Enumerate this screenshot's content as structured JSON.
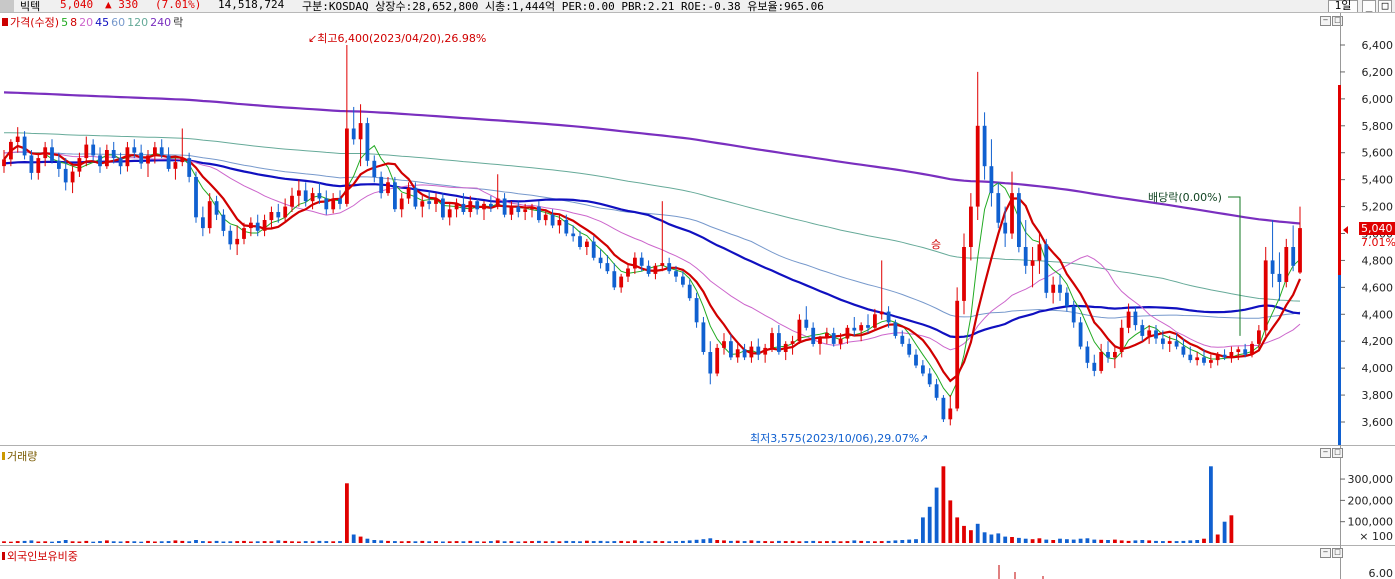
{
  "header": {
    "name": "빅텍",
    "price": "5,040",
    "change": "▲ 330",
    "change_pct": "(7.01%)",
    "volume": "14,518,724",
    "info": "구분:KOSDAQ  상장수:28,652,800  시총:1,444억  PER:0.00  PBR:2.21  ROE:-0.38  유보율:965.06",
    "period_button": "1일"
  },
  "price_panel": {
    "legend": [
      {
        "label": "가격(수정)",
        "color": "#d00000"
      },
      {
        "label": "5",
        "color": "#22aa22"
      },
      {
        "label": "8",
        "color": "#d00000"
      },
      {
        "label": "20",
        "color": "#cc66cc"
      },
      {
        "label": "45",
        "color": "#1010c0"
      },
      {
        "label": "60",
        "color": "#7799cc"
      },
      {
        "label": "120",
        "color": "#66aa99"
      },
      {
        "label": "240",
        "color": "#7a2fbf"
      },
      {
        "label": "락",
        "color": "#333333"
      }
    ],
    "high_label": "최고6,400(2023/04/20),26.98%",
    "low_label": "최저3,575(2023/10/06),29.07%",
    "dividend_label": "배당락(0.00%)",
    "rights_marker": "승",
    "current_price": "5,040",
    "current_pct": "7.01%",
    "y_ticks": [
      "6,400",
      "6,200",
      "6,000",
      "5,800",
      "5,600",
      "5,400",
      "5,200",
      "5,000",
      "4,800",
      "4,600",
      "4,400",
      "4,200",
      "4,000",
      "3,800",
      "3,600"
    ]
  },
  "volume_panel": {
    "title": "거래량",
    "y_ticks": [
      "300,000",
      "200,000",
      "100,000"
    ],
    "unit": "× 100"
  },
  "foreign_panel": {
    "title": "외국인보유비중",
    "y_ticks": [
      "6.00"
    ]
  },
  "colors": {
    "up": "#e00000",
    "down": "#1060d0",
    "accent": "#7a2fbf"
  },
  "chart_data": {
    "type": "candlestick",
    "ylim": [
      3500,
      6500
    ],
    "candles": [
      [
        5500,
        5620,
        5450,
        5550
      ],
      [
        5550,
        5700,
        5500,
        5680
      ],
      [
        5680,
        5790,
        5600,
        5720
      ],
      [
        5720,
        5760,
        5550,
        5580
      ],
      [
        5580,
        5620,
        5400,
        5450
      ],
      [
        5450,
        5600,
        5400,
        5560
      ],
      [
        5560,
        5680,
        5500,
        5640
      ],
      [
        5640,
        5700,
        5520,
        5540
      ],
      [
        5540,
        5600,
        5420,
        5480
      ],
      [
        5480,
        5560,
        5320,
        5380
      ],
      [
        5380,
        5500,
        5300,
        5460
      ],
      [
        5460,
        5600,
        5420,
        5560
      ],
      [
        5560,
        5720,
        5500,
        5660
      ],
      [
        5660,
        5700,
        5540,
        5580
      ],
      [
        5580,
        5640,
        5450,
        5500
      ],
      [
        5500,
        5660,
        5480,
        5620
      ],
      [
        5620,
        5680,
        5520,
        5560
      ],
      [
        5560,
        5600,
        5440,
        5500
      ],
      [
        5500,
        5680,
        5460,
        5640
      ],
      [
        5640,
        5700,
        5560,
        5600
      ],
      [
        5600,
        5660,
        5480,
        5520
      ],
      [
        5520,
        5620,
        5420,
        5580
      ],
      [
        5580,
        5680,
        5520,
        5640
      ],
      [
        5640,
        5700,
        5560,
        5580
      ],
      [
        5580,
        5640,
        5460,
        5480
      ],
      [
        5480,
        5560,
        5400,
        5530
      ],
      [
        5530,
        5780,
        5500,
        5560
      ],
      [
        5560,
        5600,
        5380,
        5420
      ],
      [
        5420,
        5460,
        5080,
        5120
      ],
      [
        5120,
        5200,
        4980,
        5040
      ],
      [
        5040,
        5300,
        5000,
        5240
      ],
      [
        5240,
        5280,
        5100,
        5140
      ],
      [
        5140,
        5180,
        4980,
        5020
      ],
      [
        5020,
        5060,
        4880,
        4920
      ],
      [
        4920,
        5060,
        4840,
        4960
      ],
      [
        4960,
        5080,
        4920,
        5040
      ],
      [
        5040,
        5120,
        4980,
        5080
      ],
      [
        5080,
        5140,
        4980,
        5020
      ],
      [
        5020,
        5140,
        4980,
        5100
      ],
      [
        5100,
        5200,
        5040,
        5160
      ],
      [
        5160,
        5220,
        5080,
        5120
      ],
      [
        5120,
        5260,
        5080,
        5200
      ],
      [
        5200,
        5340,
        5160,
        5280
      ],
      [
        5280,
        5400,
        5200,
        5320
      ],
      [
        5320,
        5380,
        5200,
        5240
      ],
      [
        5240,
        5340,
        5180,
        5300
      ],
      [
        5300,
        5380,
        5220,
        5260
      ],
      [
        5260,
        5320,
        5140,
        5180
      ],
      [
        5180,
        5300,
        5150,
        5260
      ],
      [
        5260,
        5320,
        5180,
        5220
      ],
      [
        5220,
        6400,
        5200,
        5780
      ],
      [
        5780,
        5940,
        5660,
        5700
      ],
      [
        5700,
        5960,
        5500,
        5820
      ],
      [
        5820,
        5860,
        5500,
        5540
      ],
      [
        5540,
        5580,
        5380,
        5420
      ],
      [
        5420,
        5460,
        5260,
        5300
      ],
      [
        5300,
        5420,
        5280,
        5380
      ],
      [
        5380,
        5420,
        5160,
        5180
      ],
      [
        5180,
        5300,
        5120,
        5260
      ],
      [
        5260,
        5380,
        5220,
        5340
      ],
      [
        5340,
        5380,
        5180,
        5200
      ],
      [
        5200,
        5280,
        5120,
        5240
      ],
      [
        5240,
        5320,
        5180,
        5220
      ],
      [
        5220,
        5300,
        5160,
        5260
      ],
      [
        5260,
        5300,
        5100,
        5120
      ],
      [
        5120,
        5220,
        5060,
        5180
      ],
      [
        5180,
        5260,
        5120,
        5220
      ],
      [
        5220,
        5300,
        5140,
        5160
      ],
      [
        5160,
        5280,
        5120,
        5240
      ],
      [
        5240,
        5260,
        5140,
        5180
      ],
      [
        5180,
        5240,
        5100,
        5220
      ],
      [
        5220,
        5280,
        5160,
        5200
      ],
      [
        5200,
        5440,
        5180,
        5260
      ],
      [
        5260,
        5300,
        5120,
        5140
      ],
      [
        5140,
        5240,
        5100,
        5200
      ],
      [
        5200,
        5240,
        5120,
        5160
      ],
      [
        5160,
        5220,
        5100,
        5180
      ],
      [
        5180,
        5220,
        5120,
        5200
      ],
      [
        5200,
        5240,
        5080,
        5100
      ],
      [
        5100,
        5180,
        5060,
        5140
      ],
      [
        5140,
        5180,
        5040,
        5060
      ],
      [
        5060,
        5140,
        5000,
        5100
      ],
      [
        5100,
        5140,
        4980,
        5000
      ],
      [
        5000,
        5060,
        4940,
        4980
      ],
      [
        4980,
        5020,
        4880,
        4900
      ],
      [
        4900,
        4960,
        4840,
        4940
      ],
      [
        4940,
        4980,
        4800,
        4820
      ],
      [
        4820,
        4880,
        4740,
        4780
      ],
      [
        4780,
        4840,
        4700,
        4720
      ],
      [
        4720,
        4780,
        4580,
        4600
      ],
      [
        4600,
        4700,
        4560,
        4680
      ],
      [
        4680,
        4780,
        4640,
        4740
      ],
      [
        4740,
        4860,
        4700,
        4820
      ],
      [
        4820,
        4860,
        4720,
        4760
      ],
      [
        4760,
        4800,
        4680,
        4700
      ],
      [
        4700,
        4780,
        4660,
        4760
      ],
      [
        4760,
        5240,
        4720,
        4780
      ],
      [
        4780,
        4820,
        4700,
        4720
      ],
      [
        4720,
        4760,
        4640,
        4680
      ],
      [
        4680,
        4720,
        4600,
        4620
      ],
      [
        4620,
        4660,
        4500,
        4520
      ],
      [
        4520,
        4560,
        4300,
        4340
      ],
      [
        4340,
        4380,
        4100,
        4120
      ],
      [
        4120,
        4200,
        3880,
        3960
      ],
      [
        3960,
        4180,
        3940,
        4150
      ],
      [
        4150,
        4260,
        4100,
        4200
      ],
      [
        4200,
        4250,
        4060,
        4080
      ],
      [
        4080,
        4180,
        4040,
        4140
      ],
      [
        4140,
        4180,
        4060,
        4080
      ],
      [
        4080,
        4200,
        4040,
        4160
      ],
      [
        4160,
        4220,
        4060,
        4100
      ],
      [
        4100,
        4180,
        4040,
        4150
      ],
      [
        4150,
        4300,
        4120,
        4260
      ],
      [
        4260,
        4320,
        4100,
        4120
      ],
      [
        4120,
        4200,
        4060,
        4180
      ],
      [
        4180,
        4240,
        4100,
        4200
      ],
      [
        4200,
        4400,
        4180,
        4360
      ],
      [
        4360,
        4460,
        4280,
        4300
      ],
      [
        4300,
        4340,
        4160,
        4180
      ],
      [
        4180,
        4240,
        4100,
        4220
      ],
      [
        4220,
        4300,
        4180,
        4260
      ],
      [
        4260,
        4300,
        4160,
        4180
      ],
      [
        4180,
        4260,
        4140,
        4220
      ],
      [
        4220,
        4320,
        4180,
        4300
      ],
      [
        4300,
        4380,
        4240,
        4280
      ],
      [
        4280,
        4340,
        4200,
        4320
      ],
      [
        4320,
        4400,
        4260,
        4300
      ],
      [
        4300,
        4440,
        4280,
        4400
      ],
      [
        4400,
        4800,
        4360,
        4420
      ],
      [
        4420,
        4460,
        4300,
        4340
      ],
      [
        4340,
        4360,
        4220,
        4240
      ],
      [
        4240,
        4280,
        4160,
        4180
      ],
      [
        4180,
        4220,
        4080,
        4100
      ],
      [
        4100,
        4140,
        4000,
        4020
      ],
      [
        4020,
        4060,
        3940,
        3960
      ],
      [
        3960,
        4000,
        3860,
        3880
      ],
      [
        3880,
        3920,
        3760,
        3780
      ],
      [
        3780,
        3800,
        3600,
        3620
      ],
      [
        3620,
        3800,
        3575,
        3700
      ],
      [
        3700,
        4600,
        3680,
        4500
      ],
      [
        4500,
        5000,
        4400,
        4900
      ],
      [
        4900,
        5300,
        4800,
        5200
      ],
      [
        5200,
        6200,
        5100,
        5800
      ],
      [
        5800,
        5900,
        5400,
        5500
      ],
      [
        5500,
        5700,
        5200,
        5300
      ],
      [
        5300,
        5380,
        5040,
        5080
      ],
      [
        5080,
        5200,
        4900,
        5000
      ],
      [
        5000,
        5460,
        4960,
        5300
      ],
      [
        5300,
        5340,
        4860,
        4900
      ],
      [
        4900,
        5100,
        4700,
        4760
      ],
      [
        4760,
        4900,
        4600,
        4800
      ],
      [
        4800,
        5000,
        4700,
        4920
      ],
      [
        4920,
        4960,
        4520,
        4560
      ],
      [
        4560,
        4680,
        4480,
        4620
      ],
      [
        4620,
        4700,
        4500,
        4560
      ],
      [
        4560,
        4600,
        4420,
        4460
      ],
      [
        4460,
        4500,
        4300,
        4340
      ],
      [
        4340,
        4380,
        4140,
        4160
      ],
      [
        4160,
        4200,
        4000,
        4040
      ],
      [
        4040,
        4100,
        3940,
        3980
      ],
      [
        3980,
        4180,
        3960,
        4120
      ],
      [
        4120,
        4200,
        4040,
        4080
      ],
      [
        4080,
        4160,
        4000,
        4120
      ],
      [
        4120,
        4360,
        4080,
        4300
      ],
      [
        4300,
        4480,
        4260,
        4420
      ],
      [
        4420,
        4460,
        4280,
        4320
      ],
      [
        4320,
        4360,
        4200,
        4240
      ],
      [
        4240,
        4320,
        4180,
        4280
      ],
      [
        4280,
        4320,
        4180,
        4220
      ],
      [
        4220,
        4280,
        4140,
        4180
      ],
      [
        4180,
        4240,
        4120,
        4200
      ],
      [
        4200,
        4260,
        4140,
        4160
      ],
      [
        4160,
        4220,
        4080,
        4100
      ],
      [
        4100,
        4160,
        4040,
        4060
      ],
      [
        4060,
        4120,
        4020,
        4080
      ],
      [
        4080,
        4140,
        4020,
        4040
      ],
      [
        4040,
        4100,
        4000,
        4060
      ],
      [
        4060,
        4120,
        4020,
        4100
      ],
      [
        4100,
        4140,
        4060,
        4080
      ],
      [
        4080,
        4160,
        4040,
        4120
      ],
      [
        4120,
        4160,
        4060,
        4140
      ],
      [
        4140,
        4180,
        4080,
        4100
      ],
      [
        4100,
        4200,
        4080,
        4180
      ],
      [
        4180,
        4320,
        4140,
        4280
      ],
      [
        4280,
        4900,
        4240,
        4800
      ],
      [
        4800,
        5100,
        4600,
        4700
      ],
      [
        4700,
        4860,
        4500,
        4640
      ],
      [
        4640,
        4960,
        4600,
        4900
      ],
      [
        4900,
        5060,
        4720,
        4760
      ],
      [
        4710,
        5200,
        4700,
        5040
      ]
    ],
    "ma_colors": {
      "ma5": "#22aa22",
      "ma8": "#d00000",
      "ma20": "#cc66cc",
      "ma45": "#1010c0",
      "ma60": "#7799cc",
      "ma120": "#66aa99",
      "ma240": "#7a2fbf"
    },
    "volume": [
      8,
      6,
      9,
      10,
      12,
      7,
      8,
      6,
      9,
      14,
      8,
      7,
      10,
      6,
      9,
      12,
      8,
      7,
      9,
      8,
      6,
      10,
      7,
      8,
      9,
      12,
      10,
      8,
      14,
      9,
      8,
      10,
      7,
      8,
      9,
      10,
      7,
      8,
      9,
      8,
      12,
      10,
      8,
      7,
      9,
      8,
      10,
      9,
      8,
      9,
      280,
      40,
      30,
      20,
      14,
      12,
      10,
      9,
      8,
      9,
      8,
      10,
      8,
      9,
      7,
      8,
      9,
      8,
      10,
      8,
      7,
      9,
      12,
      8,
      9,
      7,
      8,
      9,
      10,
      8,
      9,
      8,
      10,
      9,
      8,
      11,
      9,
      10,
      8,
      9,
      10,
      8,
      12,
      9,
      8,
      10,
      9,
      8,
      9,
      10,
      12,
      15,
      18,
      22,
      14,
      12,
      10,
      11,
      9,
      12,
      10,
      9,
      8,
      10,
      9,
      10,
      8,
      9,
      10,
      8,
      9,
      10,
      8,
      9,
      12,
      10,
      9,
      8,
      9,
      10,
      12,
      14,
      16,
      18,
      120,
      170,
      260,
      360,
      200,
      120,
      80,
      60,
      90,
      50,
      40,
      45,
      30,
      28,
      24,
      20,
      18,
      22,
      16,
      14,
      20,
      18,
      16,
      20,
      22,
      16,
      15,
      14,
      16,
      12,
      10,
      12,
      14,
      12,
      10,
      9,
      10,
      9,
      10,
      12,
      14,
      20,
      360,
      40,
      100,
      130
    ],
    "volume_up": [
      1,
      1,
      1,
      0,
      0,
      1,
      1,
      0,
      0,
      0,
      1,
      1,
      1,
      0,
      0,
      1,
      0,
      0,
      1,
      0,
      0,
      1,
      1,
      0,
      0,
      1,
      1,
      0,
      0,
      0,
      1,
      0,
      0,
      0,
      1,
      1,
      1,
      0,
      1,
      1,
      0,
      1,
      1,
      1,
      0,
      1,
      0,
      0,
      1,
      0,
      1,
      0,
      1,
      0,
      0,
      0,
      1,
      0,
      1,
      1,
      0,
      1,
      0,
      1,
      0,
      1,
      1,
      0,
      1,
      0,
      1,
      0,
      1,
      0,
      1,
      0,
      1,
      1,
      0,
      1,
      0,
      1,
      0,
      0,
      0,
      1,
      0,
      0,
      0,
      0,
      1,
      1,
      1,
      0,
      0,
      1,
      1,
      0,
      0,
      0,
      0,
      0,
      0,
      0,
      1,
      1,
      0,
      1,
      0,
      1,
      0,
      1,
      1,
      0,
      1,
      1,
      1,
      0,
      0,
      1,
      1,
      0,
      1,
      1,
      0,
      1,
      0,
      1,
      1,
      0,
      0,
      0,
      0,
      0,
      0,
      0,
      0,
      1,
      1,
      1,
      1,
      1,
      0,
      0,
      0,
      0,
      0,
      1,
      0,
      0,
      1,
      1,
      0,
      1,
      0,
      0,
      0,
      0,
      0,
      0,
      1,
      0,
      1,
      1,
      1,
      0,
      0,
      1,
      0,
      0,
      1,
      0,
      0,
      0,
      0,
      1,
      0,
      1,
      0,
      1,
      1,
      1,
      0,
      1,
      1,
      1,
      0,
      1
    ],
    "x_range_days": 188
  }
}
